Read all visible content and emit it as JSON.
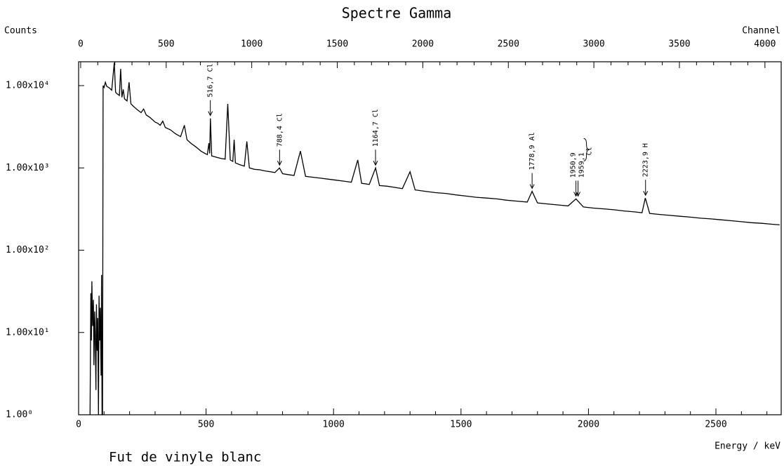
{
  "chart_data": {
    "type": "line",
    "title": "Spectre Gamma",
    "subtitle": "Fut de vinyle blanc",
    "ylabel": "Counts",
    "xlabel": "Energy / keV",
    "x2label": "Channel",
    "log_y": true,
    "grid": false,
    "color": "#000000",
    "xlim": [
      0,
      2756
    ],
    "xticks": [
      0,
      500,
      1000,
      1500,
      2000,
      2500
    ],
    "xminorticks": [
      100,
      200,
      300,
      400,
      600,
      700,
      800,
      900,
      1100,
      1200,
      1300,
      1400,
      1600,
      1700,
      1800,
      1900,
      2100,
      2200,
      2300,
      2400,
      2600,
      2700
    ],
    "x2lim": [
      -12,
      4095
    ],
    "x2ticks": [
      0,
      500,
      1000,
      1500,
      2000,
      2500,
      3000,
      3500,
      4000
    ],
    "x2minorticks": [
      100,
      200,
      300,
      400,
      600,
      700,
      800,
      900,
      1100,
      1200,
      1300,
      1400,
      1600,
      1700,
      1800,
      1900,
      2100,
      2200,
      2300,
      2400,
      2600,
      2700,
      2800,
      2900,
      3100,
      3200,
      3300,
      3400,
      3600,
      3700,
      3800,
      3900
    ],
    "ylim": [
      1,
      19500
    ],
    "yticks": [
      {
        "value": 1,
        "label": "1.00⁰"
      },
      {
        "value": 10,
        "label": "1.00x10¹"
      },
      {
        "value": 100,
        "label": "1.00x10²"
      },
      {
        "value": 1000,
        "label": "1.00x10³"
      },
      {
        "value": 10000,
        "label": "1.00x10⁴"
      }
    ],
    "series": [
      {
        "x": [
          45,
          48,
          50,
          52,
          55,
          58,
          60,
          63,
          65,
          68,
          70,
          73,
          75,
          78,
          80,
          83,
          85,
          88,
          90,
          92,
          94,
          96,
          100,
          105,
          110,
          120,
          130,
          140,
          145,
          150,
          160,
          165,
          170,
          175,
          180,
          190,
          198,
          205,
          215,
          230,
          245,
          255,
          265,
          280,
          300,
          310,
          320,
          330,
          340,
          360,
          380,
          400,
          415,
          425,
          440,
          460,
          480,
          495,
          505,
          511,
          514,
          517,
          522,
          540,
          560,
          575,
          585,
          595,
          605,
          610,
          615,
          630,
          650,
          660,
          670,
          690,
          710,
          730,
          750,
          770,
          788,
          800,
          820,
          845,
          870,
          890,
          920,
          950,
          980,
          1010,
          1040,
          1070,
          1095,
          1110,
          1140,
          1165,
          1180,
          1210,
          1240,
          1270,
          1300,
          1320,
          1360,
          1400,
          1440,
          1480,
          1520,
          1560,
          1600,
          1640,
          1680,
          1720,
          1760,
          1779,
          1800,
          1840,
          1880,
          1920,
          1951,
          1980,
          2020,
          2060,
          2100,
          2140,
          2180,
          2210,
          2223,
          2240,
          2280,
          2320,
          2360,
          2400,
          2440,
          2480,
          2520,
          2560,
          2600,
          2640,
          2680,
          2720,
          2750
        ],
        "values": [
          1,
          30,
          8,
          42,
          12,
          25,
          4,
          18,
          10,
          2,
          22,
          6,
          15,
          1,
          28,
          8,
          20,
          3,
          50,
          1,
          1,
          10000,
          9500,
          11000,
          9800,
          9400,
          8800,
          19000,
          8300,
          8000,
          7600,
          16000,
          7200,
          9000,
          6900,
          6500,
          11000,
          6000,
          5600,
          5100,
          4700,
          5200,
          4400,
          4100,
          3600,
          3500,
          3300,
          3700,
          3100,
          2900,
          2600,
          2400,
          3300,
          2200,
          2000,
          1800,
          1600,
          1500,
          1450,
          2000,
          1500,
          4000,
          1400,
          1350,
          1300,
          1280,
          6000,
          1250,
          1200,
          2200,
          1150,
          1100,
          1050,
          2100,
          1000,
          960,
          950,
          920,
          900,
          880,
          1000,
          850,
          830,
          810,
          1600,
          790,
          770,
          750,
          730,
          710,
          690,
          670,
          1250,
          650,
          630,
          1000,
          610,
          600,
          580,
          560,
          900,
          540,
          520,
          500,
          490,
          470,
          455,
          440,
          430,
          420,
          405,
          395,
          385,
          520,
          375,
          365,
          355,
          345,
          420,
          335,
          325,
          318,
          310,
          300,
          292,
          285,
          430,
          280,
          272,
          265,
          258,
          252,
          245,
          240,
          234,
          228,
          222,
          216,
          212,
          207,
          203
        ]
      }
    ],
    "annotations": [
      {
        "text": "516,7 Cl",
        "x": 516.7
      },
      {
        "text": "788,4 Cl",
        "x": 788.4
      },
      {
        "text": "1164,7 Cl",
        "x": 1164.7
      },
      {
        "text": "1778,9 Al",
        "x": 1778.9
      },
      {
        "text": "1950,9",
        "x": 1950.9
      },
      {
        "text": "1959,1",
        "x": 1959.1
      },
      {
        "text": "2223,9 H",
        "x": 2223.9
      }
    ],
    "brace_label": "Cl"
  }
}
